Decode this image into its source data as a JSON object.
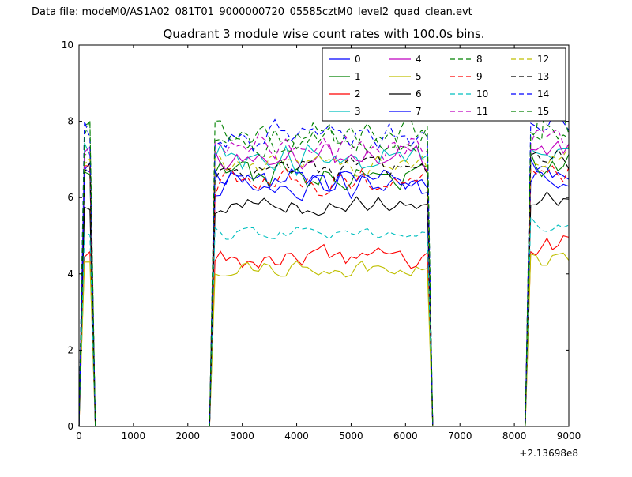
{
  "header": {
    "data_file_label": "Data file: modeM0/AS1A02_081T01_9000000720_05585cztM0_level2_quad_clean.evt"
  },
  "chart_data": {
    "type": "line",
    "title": "Quadrant 3 module wise count rates with 100.0s bins.",
    "xlabel": "",
    "ylabel": "",
    "xlim": [
      0,
      9000
    ],
    "ylim": [
      0,
      10
    ],
    "xticks": [
      0,
      1000,
      2000,
      3000,
      4000,
      5000,
      6000,
      7000,
      8000,
      9000
    ],
    "yticks": [
      0,
      2,
      4,
      6,
      8,
      10
    ],
    "x_offset_label": "+2.13698e8",
    "grid": false,
    "bin_seconds": 100,
    "x_bin_step": 100,
    "legend": {
      "position": "upper center",
      "columns": 4
    },
    "active_windows": [
      [
        100,
        250
      ],
      [
        2500,
        6400
      ],
      [
        8300,
        9000
      ]
    ],
    "window_boost": [
      0.1,
      0.0,
      0.25
    ],
    "series": [
      {
        "name": "0",
        "color": "#0000ff",
        "linestyle": "solid",
        "level": 6.35,
        "noise": 0.3
      },
      {
        "name": "1",
        "color": "#008000",
        "linestyle": "solid",
        "level": 6.6,
        "noise": 0.3
      },
      {
        "name": "2",
        "color": "#ff0000",
        "linestyle": "solid",
        "level": 4.45,
        "noise": 0.22
      },
      {
        "name": "3",
        "color": "#00bfbf",
        "linestyle": "solid",
        "level": 7.0,
        "noise": 0.3
      },
      {
        "name": "4",
        "color": "#bf00bf",
        "linestyle": "solid",
        "level": 7.05,
        "noise": 0.3
      },
      {
        "name": "5",
        "color": "#bfbf00",
        "linestyle": "solid",
        "level": 4.15,
        "noise": 0.18
      },
      {
        "name": "6",
        "color": "#000000",
        "linestyle": "solid",
        "level": 5.8,
        "noise": 0.2
      },
      {
        "name": "7",
        "color": "#0000ff",
        "linestyle": "solid",
        "level": 6.55,
        "noise": 0.28
      },
      {
        "name": "8",
        "color": "#008000",
        "linestyle": "dashed",
        "level": 7.55,
        "noise": 0.33
      },
      {
        "name": "9",
        "color": "#ff0000",
        "linestyle": "dashed",
        "level": 6.4,
        "noise": 0.28
      },
      {
        "name": "10",
        "color": "#00bfbf",
        "linestyle": "dashed",
        "level": 5.05,
        "noise": 0.14
      },
      {
        "name": "11",
        "color": "#bf00bf",
        "linestyle": "dashed",
        "level": 7.3,
        "noise": 0.3
      },
      {
        "name": "12",
        "color": "#bfbf00",
        "linestyle": "dashed",
        "level": 6.9,
        "noise": 0.28
      },
      {
        "name": "13",
        "color": "#000000",
        "linestyle": "dashed",
        "level": 6.75,
        "noise": 0.28
      },
      {
        "name": "14",
        "color": "#0000ff",
        "linestyle": "dashed",
        "level": 7.65,
        "noise": 0.33
      },
      {
        "name": "15",
        "color": "#008000",
        "linestyle": "dashed",
        "level": 7.6,
        "noise": 0.35
      }
    ],
    "spikes": [
      {
        "series": "14",
        "x": 100,
        "dy": 0.4
      },
      {
        "series": "8",
        "x": 8500,
        "dy": 0.9
      },
      {
        "series": "15",
        "x": 8600,
        "dy": 1.3
      },
      {
        "series": "14",
        "x": 8800,
        "dy": 0.6
      }
    ]
  }
}
